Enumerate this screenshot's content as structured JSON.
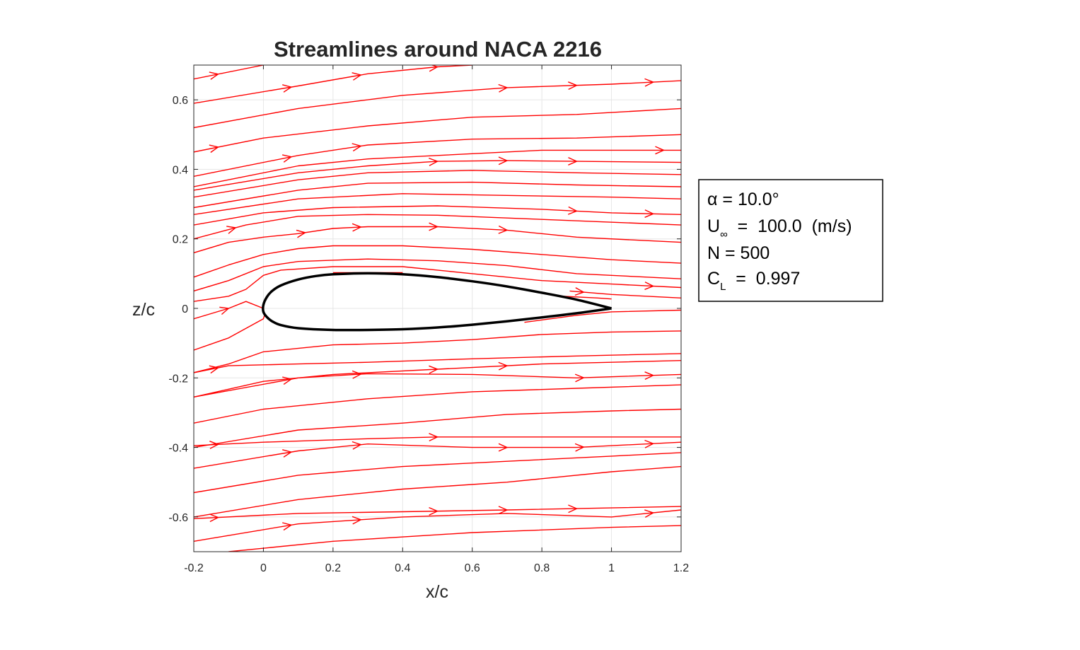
{
  "chart_data": {
    "type": "line",
    "title": "Streamlines around NACA 2216",
    "xlabel": "x/c",
    "ylabel": "z/c",
    "xlim": [
      -0.2,
      1.2
    ],
    "ylim": [
      -0.7,
      0.7
    ],
    "xticks": [
      -0.2,
      0,
      0.2,
      0.4,
      0.6,
      0.8,
      1,
      1.2
    ],
    "xtick_labels": [
      "-0.2",
      "0",
      "0.2",
      "0.4",
      "0.6",
      "0.8",
      "1",
      "1.2"
    ],
    "yticks": [
      -0.6,
      -0.4,
      -0.2,
      0,
      0.2,
      0.4,
      0.6
    ],
    "ytick_labels": [
      "-0.6",
      "-0.4",
      "-0.2",
      "0",
      "0.2",
      "0.4",
      "0.6"
    ],
    "grid": true,
    "colors": {
      "streamline": "#ff0000",
      "airfoil": "#000000",
      "grid": "#e6e6e6",
      "axes": "#262626"
    },
    "info_box": {
      "lines": [
        {
          "main": "α  =  10.0°",
          "sub": "",
          "rest": ""
        },
        {
          "main": "U",
          "sub": "∞",
          "rest": "  =  100.0  (m/s)"
        },
        {
          "main": "N  =  500",
          "sub": "",
          "rest": ""
        },
        {
          "main": "C",
          "sub": "L",
          "rest": "  =  0.997"
        }
      ]
    },
    "airfoil": {
      "name": "NACA 2216",
      "upper": [
        [
          1.0,
          0.0
        ],
        [
          0.9,
          0.025
        ],
        [
          0.8,
          0.045
        ],
        [
          0.7,
          0.063
        ],
        [
          0.6,
          0.078
        ],
        [
          0.5,
          0.09
        ],
        [
          0.4,
          0.098
        ],
        [
          0.3,
          0.101
        ],
        [
          0.2,
          0.098
        ],
        [
          0.15,
          0.093
        ],
        [
          0.1,
          0.083
        ],
        [
          0.05,
          0.066
        ],
        [
          0.025,
          0.05
        ],
        [
          0.01,
          0.033
        ],
        [
          0.0,
          0.01
        ]
      ],
      "lower": [
        [
          0.0,
          0.01
        ],
        [
          0.0,
          -0.01
        ],
        [
          0.01,
          -0.025
        ],
        [
          0.025,
          -0.037
        ],
        [
          0.05,
          -0.048
        ],
        [
          0.1,
          -0.057
        ],
        [
          0.2,
          -0.062
        ],
        [
          0.3,
          -0.062
        ],
        [
          0.4,
          -0.06
        ],
        [
          0.5,
          -0.055
        ],
        [
          0.6,
          -0.047
        ],
        [
          0.7,
          -0.037
        ],
        [
          0.8,
          -0.026
        ],
        [
          0.9,
          -0.014
        ],
        [
          1.0,
          0.0
        ]
      ]
    },
    "streamlines": [
      {
        "points": [
          [
            -0.2,
            0.66
          ],
          [
            0.0,
            0.7
          ]
        ],
        "arrows_x": [
          -0.13
        ]
      },
      {
        "points": [
          [
            -0.2,
            0.59
          ],
          [
            0.1,
            0.64
          ],
          [
            0.3,
            0.675
          ],
          [
            0.5,
            0.695
          ],
          [
            0.6,
            0.7
          ]
        ],
        "arrows_x": [
          0.08,
          0.28,
          0.5
        ]
      },
      {
        "points": [
          [
            -0.2,
            0.52
          ],
          [
            0.1,
            0.575
          ],
          [
            0.4,
            0.613
          ],
          [
            0.7,
            0.635
          ],
          [
            1.0,
            0.645
          ],
          [
            1.2,
            0.655
          ]
        ],
        "arrows_x": [
          0.7,
          0.9,
          1.12
        ]
      },
      {
        "points": [
          [
            -0.2,
            0.45
          ],
          [
            0.0,
            0.49
          ],
          [
            0.3,
            0.525
          ],
          [
            0.6,
            0.55
          ],
          [
            0.9,
            0.558
          ],
          [
            1.2,
            0.575
          ]
        ],
        "arrows_x": [
          -0.13
        ]
      },
      {
        "points": [
          [
            -0.2,
            0.38
          ],
          [
            0.1,
            0.44
          ],
          [
            0.3,
            0.47
          ],
          [
            0.6,
            0.487
          ],
          [
            0.9,
            0.49
          ],
          [
            1.2,
            0.5
          ]
        ],
        "arrows_x": [
          0.08,
          0.28
        ]
      },
      {
        "points": [
          [
            -0.2,
            0.35
          ],
          [
            0.1,
            0.41
          ],
          [
            0.3,
            0.43
          ],
          [
            0.5,
            0.44
          ],
          [
            0.8,
            0.455
          ],
          [
            1.2,
            0.455
          ]
        ],
        "arrows_x": [
          1.15
        ]
      },
      {
        "points": [
          [
            -0.2,
            0.34
          ],
          [
            0.1,
            0.39
          ],
          [
            0.3,
            0.41
          ],
          [
            0.5,
            0.423
          ],
          [
            0.7,
            0.425
          ],
          [
            0.9,
            0.423
          ],
          [
            1.2,
            0.42
          ]
        ],
        "arrows_x": [
          0.5,
          0.7,
          0.9
        ]
      },
      {
        "points": [
          [
            -0.2,
            0.32
          ],
          [
            0.1,
            0.37
          ],
          [
            0.3,
            0.39
          ],
          [
            0.6,
            0.397
          ],
          [
            0.9,
            0.39
          ],
          [
            1.2,
            0.385
          ]
        ],
        "arrows_x": []
      },
      {
        "points": [
          [
            -0.2,
            0.29
          ],
          [
            0.1,
            0.34
          ],
          [
            0.3,
            0.36
          ],
          [
            0.6,
            0.363
          ],
          [
            0.9,
            0.355
          ],
          [
            1.2,
            0.35
          ]
        ],
        "arrows_x": []
      },
      {
        "points": [
          [
            -0.2,
            0.27
          ],
          [
            0.1,
            0.315
          ],
          [
            0.4,
            0.33
          ],
          [
            0.7,
            0.325
          ],
          [
            1.0,
            0.32
          ],
          [
            1.2,
            0.315
          ]
        ],
        "arrows_x": []
      },
      {
        "points": [
          [
            -0.2,
            0.24
          ],
          [
            0.0,
            0.275
          ],
          [
            0.2,
            0.29
          ],
          [
            0.5,
            0.295
          ],
          [
            0.8,
            0.285
          ],
          [
            1.0,
            0.275
          ],
          [
            1.2,
            0.27
          ]
        ],
        "arrows_x": [
          0.9,
          1.12
        ]
      },
      {
        "points": [
          [
            -0.2,
            0.2
          ],
          [
            -0.05,
            0.24
          ],
          [
            0.1,
            0.265
          ],
          [
            0.3,
            0.27
          ],
          [
            0.5,
            0.268
          ],
          [
            0.8,
            0.256
          ],
          [
            1.2,
            0.24
          ]
        ],
        "arrows_x": [
          -0.08
        ]
      },
      {
        "points": [
          [
            -0.2,
            0.16
          ],
          [
            -0.1,
            0.19
          ],
          [
            0.0,
            0.205
          ],
          [
            0.1,
            0.215
          ],
          [
            0.2,
            0.23
          ],
          [
            0.3,
            0.235
          ],
          [
            0.5,
            0.235
          ],
          [
            0.7,
            0.225
          ],
          [
            0.9,
            0.205
          ],
          [
            1.2,
            0.19
          ]
        ],
        "arrows_x": [
          0.12,
          0.28,
          0.5,
          0.7
        ]
      },
      {
        "points": [
          [
            -0.2,
            0.09
          ],
          [
            -0.1,
            0.125
          ],
          [
            0.0,
            0.155
          ],
          [
            0.1,
            0.172
          ],
          [
            0.2,
            0.18
          ],
          [
            0.4,
            0.18
          ],
          [
            0.6,
            0.17
          ],
          [
            0.8,
            0.155
          ],
          [
            1.0,
            0.14
          ],
          [
            1.2,
            0.13
          ]
        ],
        "arrows_x": []
      },
      {
        "points": [
          [
            -0.2,
            0.05
          ],
          [
            -0.1,
            0.08
          ],
          [
            0.0,
            0.12
          ],
          [
            0.1,
            0.135
          ],
          [
            0.3,
            0.142
          ],
          [
            0.5,
            0.137
          ],
          [
            0.7,
            0.123
          ],
          [
            0.9,
            0.1
          ],
          [
            1.2,
            0.085
          ]
        ],
        "arrows_x": []
      },
      {
        "points": [
          [
            -0.2,
            0.02
          ],
          [
            -0.1,
            0.035
          ],
          [
            -0.05,
            0.055
          ],
          [
            0.0,
            0.095
          ],
          [
            0.05,
            0.11
          ],
          [
            0.2,
            0.12
          ],
          [
            0.4,
            0.12
          ],
          [
            0.6,
            0.1
          ],
          [
            0.8,
            0.08
          ],
          [
            1.0,
            0.07
          ],
          [
            1.2,
            0.06
          ]
        ],
        "arrows_x": [
          1.12
        ]
      },
      {
        "points": [
          [
            0.2,
            0.103
          ],
          [
            0.4,
            0.103
          ]
        ],
        "arrows_x": []
      },
      {
        "points": [
          [
            0.88,
            0.05
          ],
          [
            1.0,
            0.04
          ],
          [
            1.2,
            0.03
          ]
        ],
        "arrows_x": [
          0.92
        ]
      },
      {
        "points": [
          [
            0.86,
            0.035
          ],
          [
            0.96,
            0.03
          ],
          [
            1.0,
            0.027
          ]
        ],
        "arrows_x": []
      },
      {
        "points": [
          [
            -0.2,
            -0.03
          ],
          [
            -0.1,
            0.0
          ],
          [
            -0.05,
            0.02
          ],
          [
            0.0,
            0.0
          ]
        ],
        "arrows_x": [
          -0.1
        ]
      },
      {
        "points": [
          [
            0.75,
            -0.04
          ],
          [
            0.9,
            -0.02
          ],
          [
            1.0,
            -0.01
          ],
          [
            1.2,
            -0.005
          ]
        ],
        "arrows_x": []
      },
      {
        "points": [
          [
            -0.2,
            -0.12
          ],
          [
            -0.1,
            -0.085
          ],
          [
            0.0,
            -0.03
          ],
          [
            0.005,
            -0.015
          ]
        ],
        "arrows_x": []
      },
      {
        "points": [
          [
            -0.2,
            -0.185
          ],
          [
            -0.1,
            -0.16
          ],
          [
            0.0,
            -0.125
          ],
          [
            0.2,
            -0.105
          ],
          [
            0.4,
            -0.1
          ],
          [
            0.6,
            -0.09
          ],
          [
            0.8,
            -0.075
          ],
          [
            1.0,
            -0.068
          ],
          [
            1.2,
            -0.065
          ]
        ],
        "arrows_x": []
      },
      {
        "points": [
          [
            -0.2,
            -0.185
          ],
          [
            -0.1,
            -0.165
          ],
          [
            0.1,
            -0.16
          ],
          [
            0.3,
            -0.155
          ],
          [
            0.6,
            -0.145
          ],
          [
            0.9,
            -0.137
          ],
          [
            1.2,
            -0.13
          ]
        ],
        "arrows_x": [
          -0.13
        ]
      },
      {
        "points": [
          [
            -0.2,
            -0.255
          ],
          [
            0.0,
            -0.21
          ],
          [
            0.2,
            -0.19
          ],
          [
            0.5,
            -0.175
          ],
          [
            0.8,
            -0.16
          ],
          [
            1.2,
            -0.15
          ]
        ],
        "arrows_x": [
          0.5,
          0.7
        ]
      },
      {
        "points": [
          [
            -0.2,
            -0.255
          ],
          [
            0.1,
            -0.2
          ],
          [
            0.3,
            -0.188
          ],
          [
            0.6,
            -0.19
          ],
          [
            0.9,
            -0.2
          ],
          [
            1.2,
            -0.19
          ]
        ],
        "arrows_x": [
          0.08,
          0.28,
          0.92,
          1.12
        ]
      },
      {
        "points": [
          [
            -0.2,
            -0.33
          ],
          [
            0.0,
            -0.29
          ],
          [
            0.3,
            -0.26
          ],
          [
            0.6,
            -0.24
          ],
          [
            0.9,
            -0.23
          ],
          [
            1.2,
            -0.22
          ]
        ],
        "arrows_x": []
      },
      {
        "points": [
          [
            -0.2,
            -0.4
          ],
          [
            0.1,
            -0.35
          ],
          [
            0.4,
            -0.33
          ],
          [
            0.7,
            -0.305
          ],
          [
            1.0,
            -0.295
          ],
          [
            1.2,
            -0.29
          ]
        ],
        "arrows_x": []
      },
      {
        "points": [
          [
            -0.2,
            -0.395
          ],
          [
            0.0,
            -0.385
          ],
          [
            0.3,
            -0.375
          ],
          [
            0.5,
            -0.37
          ],
          [
            1.2,
            -0.37
          ]
        ],
        "arrows_x": [
          -0.13,
          0.5
        ]
      },
      {
        "points": [
          [
            -0.2,
            -0.46
          ],
          [
            0.1,
            -0.41
          ],
          [
            0.3,
            -0.39
          ],
          [
            0.6,
            -0.4
          ],
          [
            0.9,
            -0.4
          ],
          [
            1.2,
            -0.385
          ]
        ],
        "arrows_x": [
          0.08,
          0.28,
          0.7,
          0.92,
          1.12
        ]
      },
      {
        "points": [
          [
            -0.2,
            -0.53
          ],
          [
            0.1,
            -0.48
          ],
          [
            0.4,
            -0.455
          ],
          [
            0.7,
            -0.44
          ],
          [
            1.0,
            -0.425
          ],
          [
            1.2,
            -0.415
          ]
        ],
        "arrows_x": []
      },
      {
        "points": [
          [
            -0.2,
            -0.6
          ],
          [
            0.1,
            -0.55
          ],
          [
            0.4,
            -0.52
          ],
          [
            0.7,
            -0.5
          ],
          [
            1.0,
            -0.47
          ],
          [
            1.2,
            -0.455
          ]
        ],
        "arrows_x": []
      },
      {
        "points": [
          [
            -0.2,
            -0.605
          ],
          [
            0.1,
            -0.59
          ],
          [
            0.4,
            -0.585
          ],
          [
            0.7,
            -0.58
          ],
          [
            1.2,
            -0.57
          ]
        ],
        "arrows_x": [
          -0.13,
          0.5,
          0.7,
          0.9
        ]
      },
      {
        "points": [
          [
            -0.2,
            -0.67
          ],
          [
            0.1,
            -0.62
          ],
          [
            0.4,
            -0.6
          ],
          [
            0.7,
            -0.59
          ],
          [
            1.0,
            -0.6
          ],
          [
            1.2,
            -0.58
          ]
        ],
        "arrows_x": [
          0.08,
          0.28,
          1.12
        ]
      },
      {
        "points": [
          [
            -0.1,
            -0.7
          ],
          [
            0.2,
            -0.67
          ],
          [
            0.6,
            -0.645
          ],
          [
            1.0,
            -0.63
          ],
          [
            1.2,
            -0.625
          ]
        ],
        "arrows_x": []
      }
    ]
  }
}
